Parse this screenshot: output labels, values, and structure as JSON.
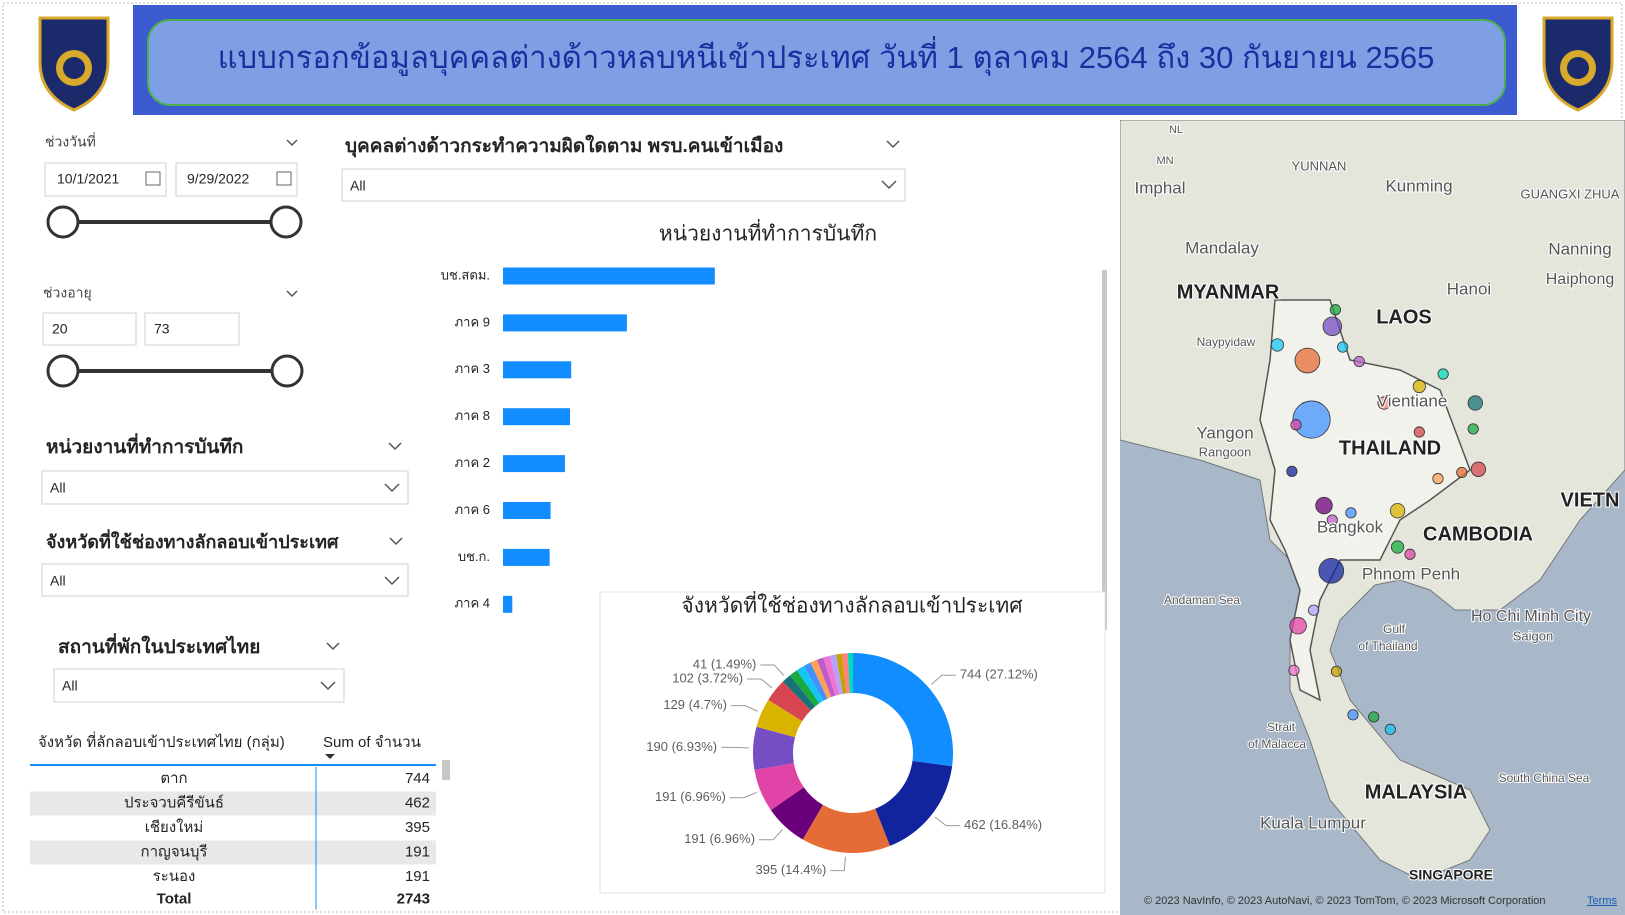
{
  "header": {
    "title": "แบบกรอกข้อมูลบุคคลต่างด้าวหลบหนีเข้าประเทศ วันที่ 1 ตุลาคม 2564 ถึง 30 กันยายน 2565"
  },
  "slicers": {
    "date": {
      "label": "ช่วงวันที่",
      "start": "10/1/2021",
      "end": "9/29/2022"
    },
    "age": {
      "label": "ช่วงอายุ",
      "min": 20,
      "max": 73
    },
    "unit": {
      "label": "หน่วยงานที่ทำการบันทึก",
      "value": "All"
    },
    "province": {
      "label": "จังหวัดที่ใช้ช่องทางลักลอบเข้าประเทศ",
      "value": "All"
    },
    "lodging": {
      "label": "สถานที่พักในประเทศไทย",
      "value": "All"
    },
    "offense": {
      "label": "บุคคลต่างด้าวกระทำความผิดใดตาม พรบ.คนเข้าเมือง",
      "value": "All"
    }
  },
  "chart_data": [
    {
      "type": "bar",
      "title": "หน่วยงานที่ทำการบันทึก",
      "categories": [
        "บช.สตม.",
        "ภาค 9",
        "ภาค 3",
        "ภาค 8",
        "ภาค 2",
        "ภาค 6",
        "บช.ก.",
        "ภาค 4"
      ],
      "values": [
        913,
        534,
        294,
        289,
        267,
        205,
        201,
        40
      ],
      "color": "#118dff",
      "xlim": [
        0,
        2500
      ]
    },
    {
      "type": "pie",
      "donut": true,
      "title": "จังหวัดที่ใช้ช่องทางลักลอบเข้าประเทศ",
      "values": [
        744,
        462,
        395,
        191,
        191,
        190,
        129,
        102,
        41,
        38,
        35,
        33,
        31,
        30,
        29,
        28,
        26,
        25,
        23
      ],
      "value_labels": [
        "744 (27.12%)",
        "462 (16.84%)",
        "395 (14.4%)",
        "191 (6.96%)",
        "191 (6.96%)",
        "190 (6.93%)",
        "129 (4.7%)",
        "102 (3.72%)",
        "41 (1.49%)",
        null,
        null,
        null,
        null,
        null,
        null,
        null,
        null,
        null,
        null
      ],
      "colors": [
        "#118dff",
        "#12239e",
        "#e66c37",
        "#6b007b",
        "#e044a7",
        "#744ec2",
        "#d9b300",
        "#d64550",
        "#197278",
        "#1aab40",
        "#15c6f4",
        "#4092ff",
        "#ffa058",
        "#be5dc9",
        "#f472d0",
        "#b5a1ff",
        "#c4a200",
        "#ff8080",
        "#00dbbc"
      ]
    }
  ],
  "table": {
    "columns": [
      "จังหวัด ที่ลักลอบเข้าประเทศไทย (กลุ่ม)",
      "Sum of จำนวน"
    ],
    "rows": [
      [
        "ตาก",
        744
      ],
      [
        "ประจวบคีรีขันธ์",
        462
      ],
      [
        "เชียงใหม่",
        395
      ],
      [
        "กาญจนบุรี",
        191
      ],
      [
        "ระนอง",
        191
      ]
    ],
    "total": {
      "label": "Total",
      "value": 2743
    }
  },
  "map": {
    "labels": [
      "NL",
      "MN",
      "Imphal",
      "YUNNAN",
      "Kunming",
      "GUANGXI ZHUA",
      "Mandalay",
      "Nanning",
      "Haiphong",
      "MYANMAR",
      "LAOS",
      "Hanoi",
      "Naypyidaw",
      "Vientiane",
      "Yangon",
      "Rangoon",
      "THAILAND",
      "VIETN",
      "Bangkok",
      "CAMBODIA",
      "Phnom Penh",
      "Andaman Sea",
      "Ho Chi Minh City",
      "Saigon",
      "Gulf",
      "of Thailand",
      "Strait",
      "of Malacca",
      "South China Sea",
      "MALAYSIA",
      "Kuala Lumpur",
      "SINGAPORE"
    ],
    "attribution": "© 2023 NavInfo, © 2023 AutoNavi, © 2023 TomTom, © 2023 Microsoft Corporation",
    "terms": "Terms"
  }
}
